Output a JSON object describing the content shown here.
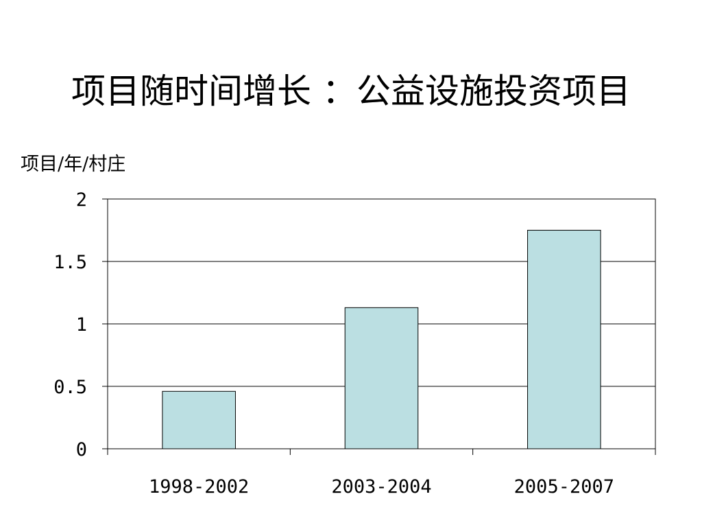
{
  "slide": {
    "title": "项目随时间增长 ：公益设施投资项目",
    "y_unit_label": "项目/年/村庄"
  },
  "colors": {
    "bar_fill": "#bbdfe2",
    "bar_stroke": "#000000",
    "grid": "#000000"
  },
  "chart_data": {
    "type": "bar",
    "title": "",
    "xlabel": "",
    "ylabel": "项目/年/村庄",
    "categories": [
      "1998-2002",
      "2003-2004",
      "2005-2007"
    ],
    "values": [
      0.46,
      1.13,
      1.75
    ],
    "ylim": [
      0,
      2
    ],
    "yticks": [
      0,
      0.5,
      1,
      1.5,
      2
    ],
    "ytick_labels": [
      "0",
      "0.5",
      "1",
      "1.5",
      "2"
    ],
    "grid": true,
    "legend": "none"
  }
}
